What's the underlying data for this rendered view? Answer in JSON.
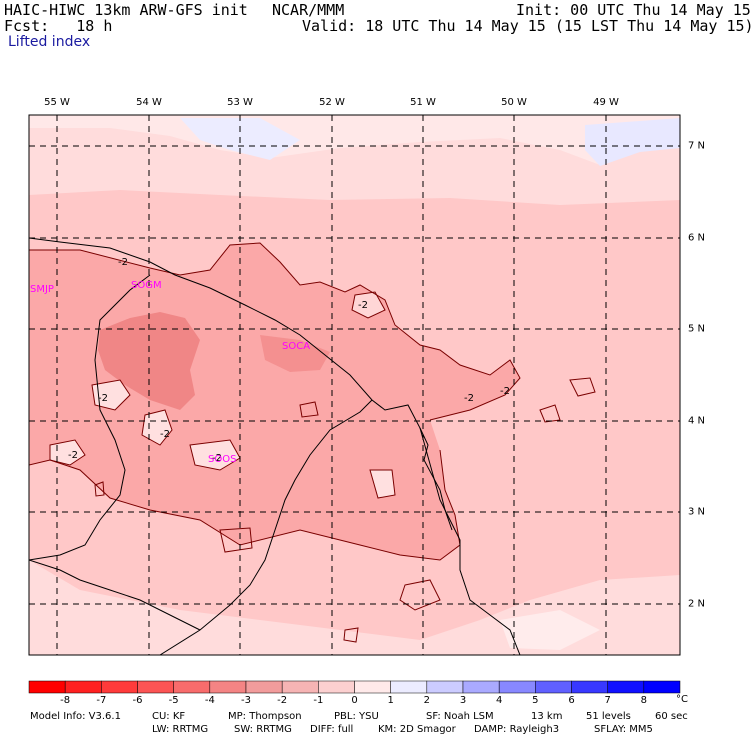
{
  "header": {
    "model": "HAIC-HIWC 13km ARW-GFS init",
    "org": "NCAR/MMM",
    "init": "Init: 00 UTC Thu 14 May 15",
    "fcst": "Fcst:   18 h",
    "valid": "Valid: 18 UTC Thu 14 May 15 (15 LST Thu 14 May 15)",
    "field": "Lifted index"
  },
  "map": {
    "lon_labels": [
      "55 W",
      "54 W",
      "53 W",
      "52 W",
      "51 W",
      "50 W",
      "49 W"
    ],
    "lat_labels": [
      "7 N",
      "6 N",
      "5 N",
      "4 N",
      "3 N",
      "2 N"
    ],
    "stations": [
      "SMJP",
      "SOGM",
      "SOCA",
      "SOOS"
    ],
    "contour_labels": [
      "-2",
      "-2",
      "-2",
      "-2",
      "-2",
      "-2",
      "-2",
      "-2"
    ],
    "colors": {
      "li_minus2_to_minus1": "#ffc8c8",
      "li_minus3_to_minus2": "#fba8a8",
      "li_minus4_to_minus3": "#f48c8c",
      "li_minus1_to_0": "#ffe4e4",
      "li_0_to_1": "#ffffff",
      "li_1_to_2": "#e4e4ff",
      "station": "#ff00ff"
    }
  },
  "colorbar": {
    "ticks": [
      "-8",
      "-7",
      "-6",
      "-5",
      "-4",
      "-3",
      "-2",
      "-1",
      "0",
      "1",
      "2",
      "3",
      "4",
      "5",
      "6",
      "7",
      "8"
    ],
    "unit": "°C",
    "colors": [
      "#ff0000",
      "#ff2020",
      "#ff3b3b",
      "#fc5454",
      "#f86c6c",
      "#f48484",
      "#f29c9c",
      "#f6b4b4",
      "#fcd0d0",
      "#ffeaea",
      "#ececff",
      "#ccccff",
      "#aaaaff",
      "#8888ff",
      "#6060ff",
      "#3838ff",
      "#1010ff",
      "#0000ff"
    ]
  },
  "footer": {
    "line1": {
      "model_info": "Model Info: V3.6.1",
      "cu": "CU: KF",
      "mp": "MP: Thompson",
      "pbl": "PBL: YSU",
      "sf": "SF: Noah LSM",
      "res": "13 km",
      "levels": "51 levels",
      "dt": "60 sec"
    },
    "line2": {
      "lw": "LW: RRTMG",
      "sw": "SW: RRTMG",
      "diff": "DIFF: full",
      "km": "KM: 2D Smagor",
      "damp": "DAMP: Rayleigh3",
      "sflay": "SFLAY: MM5"
    }
  }
}
